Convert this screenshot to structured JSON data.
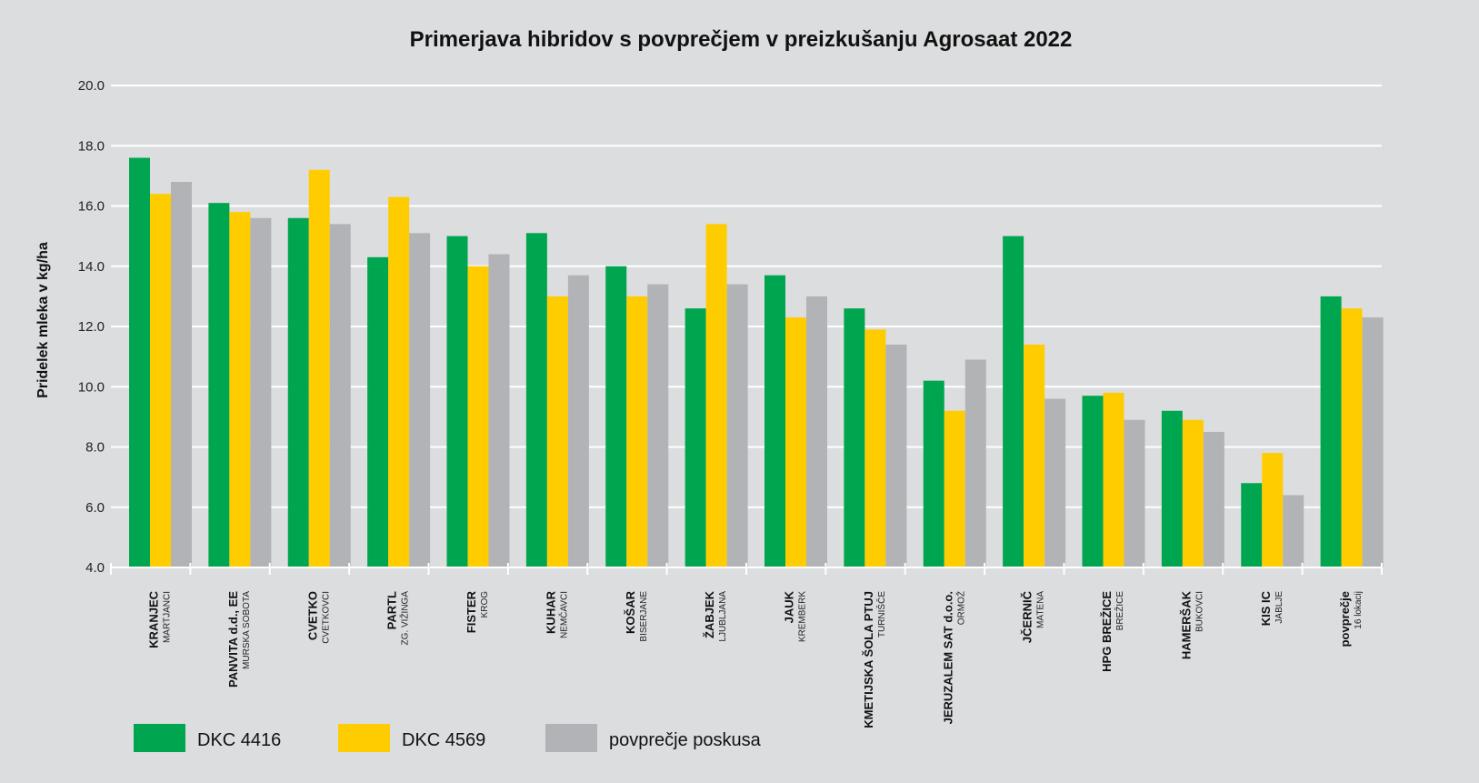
{
  "chart_data": {
    "type": "bar",
    "title": "Primerjava hibridov s povprečjem v preizkušanju Agrosaat 2022",
    "ylabel": "Pridelek mleka v kg/ha",
    "xlabel": "",
    "ylim": [
      4.0,
      20.0
    ],
    "yticks": [
      "4.0",
      "6.0",
      "8.0",
      "10.0",
      "12.0",
      "14.0",
      "16.0",
      "18.0",
      "20.0"
    ],
    "grid": true,
    "legend": "bottom-left",
    "categories": [
      {
        "name": "KRANJEC",
        "sub": "MARTJANCI"
      },
      {
        "name": "PANVITA d.d., EE",
        "sub": "MURSKA SOBOTA"
      },
      {
        "name": "CVETKO",
        "sub": "CVETKOVCI"
      },
      {
        "name": "PARTL",
        "sub": "ZG. VIŽINGA"
      },
      {
        "name": "FISTER",
        "sub": "KROG"
      },
      {
        "name": "KUHAR",
        "sub": "NEMČAVCI"
      },
      {
        "name": "KOŠAR",
        "sub": "BISERJANE"
      },
      {
        "name": "ŽABJEK",
        "sub": "LJUBLJANA"
      },
      {
        "name": "JAUK",
        "sub": "KREMBERK"
      },
      {
        "name": "KMETIJSKA ŠOLA PTUJ",
        "sub": "TURNIŠČE"
      },
      {
        "name": "JERUZALEM SAT d.o.o.",
        "sub": "ORMOŽ"
      },
      {
        "name": "JČERNIČ",
        "sub": "MATENA"
      },
      {
        "name": "HPG BREŽICE",
        "sub": "BREŽICE"
      },
      {
        "name": "HAMERŠAK",
        "sub": "BUKOVCI"
      },
      {
        "name": "KIS IC",
        "sub": "JABLJE"
      },
      {
        "name": "povprečje",
        "sub": "16 lokacij"
      }
    ],
    "series": [
      {
        "name": "DKC 4416",
        "color": "#00a64f",
        "values": [
          17.6,
          16.1,
          15.6,
          14.3,
          15.0,
          15.1,
          14.0,
          12.6,
          13.7,
          12.6,
          10.2,
          15.0,
          9.7,
          9.2,
          6.8,
          13.0
        ]
      },
      {
        "name": "DKC 4569",
        "color": "#ffcc00",
        "values": [
          16.4,
          15.8,
          17.2,
          16.3,
          14.0,
          13.0,
          13.0,
          15.4,
          12.3,
          11.9,
          9.2,
          11.4,
          9.8,
          8.9,
          7.8,
          12.6
        ]
      },
      {
        "name": "povprečje poskusa",
        "color": "#b1b3b6",
        "values": [
          16.8,
          15.6,
          15.4,
          15.1,
          14.4,
          13.7,
          13.4,
          13.4,
          13.0,
          11.4,
          10.9,
          9.6,
          8.9,
          8.5,
          6.4,
          12.3
        ]
      }
    ]
  }
}
